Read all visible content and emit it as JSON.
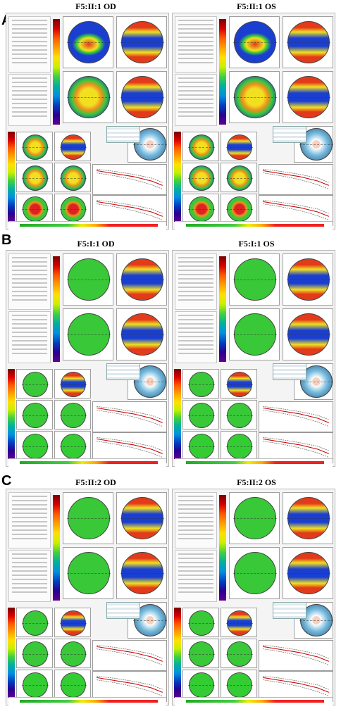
{
  "sections": [
    {
      "letter": "A",
      "left_title": "F5:II:1 OD",
      "right_title": "F5:II:1 OS"
    },
    {
      "letter": "B",
      "left_title": "F5:I:1 OD",
      "right_title": "F5:I:1 OS"
    },
    {
      "letter": "C",
      "left_title": "F5:II:2 OD",
      "right_title": "F5:II:2 OS"
    }
  ],
  "colors": {
    "keratoconus_center": "#d22",
    "normal_center": "#3c3",
    "map_blue": "#1a3fd0",
    "map_yellow": "#f0e020",
    "map_green": "#38c838",
    "map_red": "#e23a1a"
  }
}
